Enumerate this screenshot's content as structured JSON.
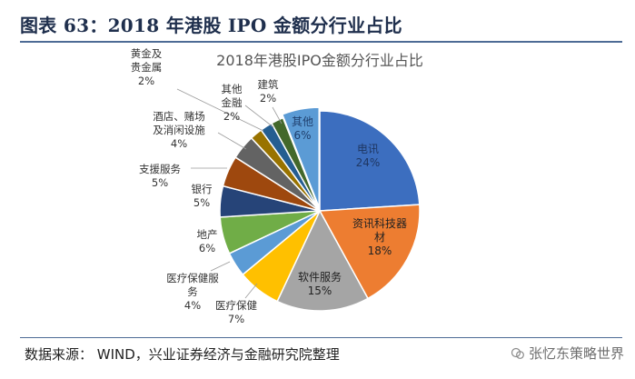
{
  "header": {
    "title": "图表 63：2018 年港股 IPO 金额分行业占比"
  },
  "footer": {
    "source": "数据来源：   WIND，兴业证券经济与金融研究院整理",
    "watermark": "张忆东策略世界"
  },
  "chart_data": {
    "type": "pie",
    "title": "2018年港股IPO金额分行业占比",
    "slices": [
      {
        "label": [
          "其他"
        ],
        "value": 6,
        "pct": "6%",
        "color": "#5b9bd5",
        "inside": true,
        "text_color": "#1f3f6d"
      },
      {
        "label": [
          "电讯"
        ],
        "value": 24,
        "pct": "24%",
        "color": "#3c6ebf",
        "inside": true,
        "text_color": "#1f3763"
      },
      {
        "label": [
          "资讯科技器",
          "材"
        ],
        "value": 18,
        "pct": "18%",
        "color": "#ed7d31",
        "inside": true,
        "text_color": "#222222"
      },
      {
        "label": [
          "软件服务"
        ],
        "value": 15,
        "pct": "15%",
        "color": "#a5a5a5",
        "inside": true,
        "text_color": "#222222"
      },
      {
        "label": [
          "医疗保健"
        ],
        "value": 7,
        "pct": "7%",
        "color": "#ffc000",
        "inside": false,
        "text_color": "#333333"
      },
      {
        "label": [
          "医疗保健服",
          "务"
        ],
        "value": 4,
        "pct": "4%",
        "color": "#5b9bd5",
        "inside": false,
        "text_color": "#333333"
      },
      {
        "label": [
          "地产"
        ],
        "value": 6,
        "pct": "6%",
        "color": "#70ad47",
        "inside": false,
        "text_color": "#333333"
      },
      {
        "label": [
          "银行"
        ],
        "value": 5,
        "pct": "5%",
        "color": "#264478",
        "inside": false,
        "text_color": "#333333"
      },
      {
        "label": [
          "支援服务"
        ],
        "value": 5,
        "pct": "5%",
        "color": "#9e480e",
        "inside": false,
        "text_color": "#333333"
      },
      {
        "label": [
          "酒店、赌场",
          "及消闲设施"
        ],
        "value": 4,
        "pct": "4%",
        "color": "#636363",
        "inside": false,
        "text_color": "#333333"
      },
      {
        "label": [
          "黄金及",
          "贵金属"
        ],
        "value": 2,
        "pct": "2%",
        "color": "#997300",
        "inside": false,
        "text_color": "#333333"
      },
      {
        "label": [
          "其他",
          "金融"
        ],
        "value": 2,
        "pct": "2%",
        "color": "#255e91",
        "inside": false,
        "text_color": "#333333"
      },
      {
        "label": [
          "建筑"
        ],
        "value": 2,
        "pct": "2%",
        "color": "#43682b",
        "inside": false,
        "text_color": "#333333"
      }
    ]
  }
}
